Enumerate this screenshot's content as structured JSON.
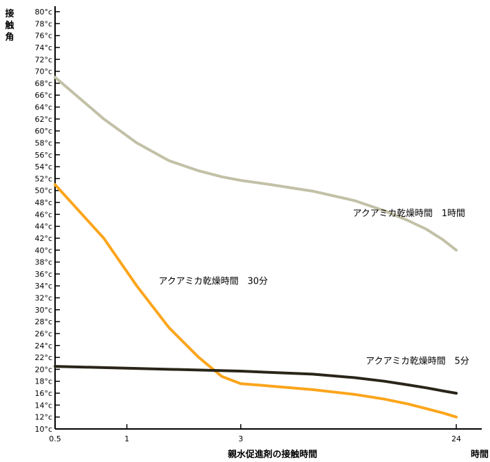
{
  "chart_data": {
    "type": "line",
    "title": "",
    "xlabel": "親水促進剤の接触時間",
    "xunit": "時間",
    "ylabel": "接触角",
    "xlim": [
      0.5,
      24
    ],
    "ylim": [
      10,
      80
    ],
    "y_tick_step": 2,
    "y_tick_suffix": "°c",
    "x_ticks": [
      {
        "value": 0.5,
        "label": "0.5"
      },
      {
        "value": 1,
        "label": "1"
      },
      {
        "value": 3,
        "label": "3"
      },
      {
        "value": 24,
        "label": "24"
      }
    ],
    "grid": false,
    "legend": "none",
    "series": [
      {
        "name": "アクアミカ乾燥時間　1時間",
        "color": "#c2c0a6",
        "label_at": {
          "x": 15.2,
          "y": 45.7
        },
        "points": [
          [
            0.5,
            69
          ],
          [
            0.8,
            62
          ],
          [
            1.1,
            58
          ],
          [
            1.5,
            55
          ],
          [
            2,
            53.3
          ],
          [
            2.5,
            52.3
          ],
          [
            3,
            51.7
          ],
          [
            4,
            51
          ],
          [
            6,
            49.9
          ],
          [
            9,
            48.3
          ],
          [
            12,
            46.6
          ],
          [
            15,
            45
          ],
          [
            18,
            43.5
          ],
          [
            21,
            41.8
          ],
          [
            24,
            40
          ]
        ]
      },
      {
        "name": "アクアミカ乾燥時間　30分",
        "color": "#fba51c",
        "label_at": {
          "x": 2.3,
          "y": 34.3
        },
        "points": [
          [
            0.5,
            51
          ],
          [
            0.8,
            42
          ],
          [
            1.1,
            34
          ],
          [
            1.5,
            27
          ],
          [
            2,
            22
          ],
          [
            2.5,
            18.8
          ],
          [
            3,
            17.6
          ],
          [
            4,
            17.2
          ],
          [
            6,
            16.6
          ],
          [
            9,
            15.8
          ],
          [
            12,
            15
          ],
          [
            15,
            14.2
          ],
          [
            18,
            13.4
          ],
          [
            21,
            12.7
          ],
          [
            24,
            12
          ]
        ]
      },
      {
        "name": "アクアミカ乾燥時間　5分",
        "color": "#2a2519",
        "label_at": {
          "x": 16.5,
          "y": 20.9
        },
        "points": [
          [
            0.5,
            20.5
          ],
          [
            3,
            19.7
          ],
          [
            6,
            19.2
          ],
          [
            9,
            18.6
          ],
          [
            12,
            18
          ],
          [
            15,
            17.4
          ],
          [
            18,
            16.9
          ],
          [
            21,
            16.4
          ],
          [
            24,
            16
          ]
        ]
      }
    ]
  }
}
